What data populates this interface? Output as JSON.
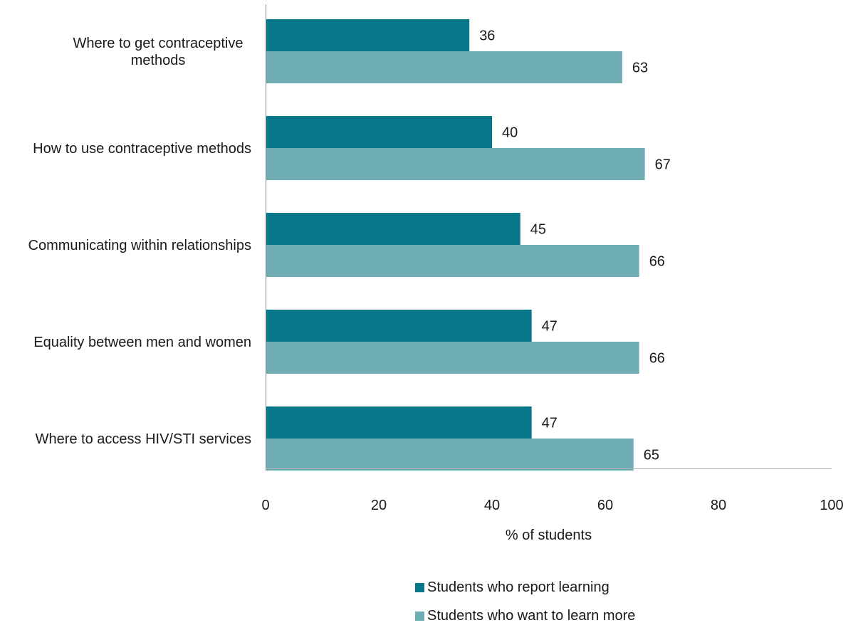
{
  "chart_data": {
    "type": "bar",
    "orientation": "horizontal",
    "categories": [
      [
        "Where to get contraceptive",
        "methods"
      ],
      [
        "How to use contraceptive methods"
      ],
      [
        "Communicating within relationships"
      ],
      [
        "Equality between men and women"
      ],
      [
        "Where to access HIV/STI services"
      ]
    ],
    "series": [
      {
        "name": "Students who report learning",
        "color": "#06788a",
        "values": [
          36,
          40,
          45,
          47,
          47
        ]
      },
      {
        "name": "Students who want to learn more",
        "color": "#6fadb5",
        "values": [
          63,
          67,
          66,
          66,
          65
        ]
      }
    ],
    "xlabel": "% of students",
    "xlim": [
      0,
      100
    ],
    "xticks": [
      0,
      20,
      40,
      60,
      80,
      100
    ],
    "legend_position": "bottom",
    "grid": false
  }
}
